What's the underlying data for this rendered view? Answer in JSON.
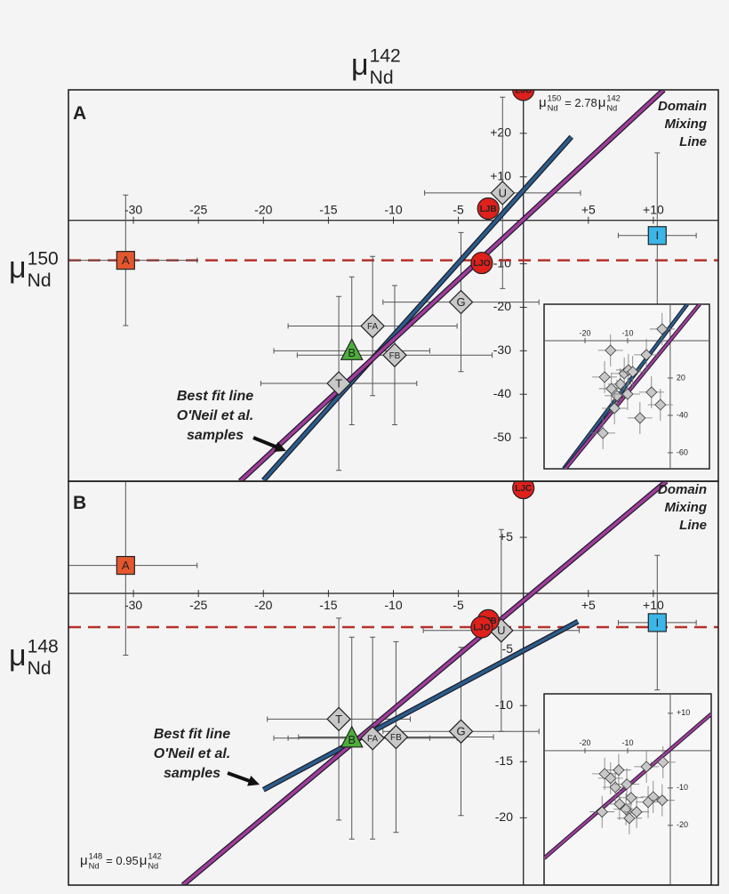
{
  "chart_data": [
    {
      "type": "scatter",
      "panel": "A",
      "x_label": {
        "symbol": "μ",
        "sup": "142",
        "sub": "Nd"
      },
      "y_label": {
        "symbol": "μ",
        "sup": "150",
        "sub": "Nd"
      },
      "xlim": [
        -35,
        15
      ],
      "ylim": [
        -60,
        30
      ],
      "xticks": [
        -30,
        -25,
        -20,
        -15,
        -10,
        -5,
        {
          "value": 5,
          "label": "+5"
        },
        {
          "value": 10,
          "label": "+10"
        }
      ],
      "yticks": [
        {
          "value": 20,
          "label": "+20"
        },
        {
          "value": 10,
          "label": "+10"
        },
        -10,
        -20,
        -30,
        -40,
        -50
      ],
      "points": {
        "labels": [
          "A",
          "LJC",
          "U",
          "LJB",
          "LJO",
          "I",
          "G",
          "FA",
          "B",
          "FB",
          "T"
        ],
        "x": [
          -30.6,
          0,
          -1.6,
          -2.7,
          -3.2,
          10.3,
          -4.8,
          -11.6,
          -13.2,
          -9.9,
          -14.2
        ],
        "y": [
          -9.2,
          30,
          6.3,
          2.7,
          -9.8,
          -3.5,
          -18.8,
          -24.3,
          -30,
          -31,
          -37.5
        ],
        "x_err": [
          5.5,
          null,
          6,
          null,
          null,
          3,
          6,
          6.5,
          6,
          7.5,
          6
        ],
        "y_err": [
          15,
          null,
          22,
          null,
          null,
          19,
          16,
          16,
          17,
          16,
          20
        ],
        "shapes": [
          "square",
          "circle",
          "diamond",
          "circle",
          "circle",
          "square",
          "diamond",
          "diamond",
          "triangle",
          "diamond",
          "diamond"
        ],
        "colors": [
          "#e4572e",
          "#e0201b",
          "#c8c8c8",
          "#e0201b",
          "#e0201b",
          "#3bb6e8",
          "#c8c8c8",
          "#c8c8c8",
          "#4caf3a",
          "#c8c8c8",
          "#c8c8c8"
        ]
      },
      "reference_line": {
        "y": -9.2,
        "color": "#b8302a"
      },
      "lines": [
        {
          "color": "#2a5d8c",
          "x": [
            -20,
            3.7
          ],
          "y": [
            -59.8,
            19.2
          ]
        },
        {
          "color": "#a33c9c",
          "x": [
            -21.8,
            10.8
          ],
          "y": [
            -60,
            30
          ]
        }
      ],
      "annotations": {
        "mixing": {
          "text": [
            "Domain",
            "Mixing",
            "Line"
          ],
          "color": "#b0399f"
        },
        "best_fit": {
          "text": [
            "Best fit line",
            "O'Neil et al.",
            "samples"
          ],
          "color": "#2c6ea5"
        }
      },
      "equation": {
        "lhs": {
          "symbol": "μ",
          "sup": "150",
          "sub": "Nd"
        },
        "coef": "= 2.78",
        "rhs": {
          "symbol": "μ",
          "sup": "142",
          "sub": "Nd"
        }
      },
      "inset": {
        "xlim": [
          -29.6,
          9.2
        ],
        "ylim": [
          -68.6,
          19.5
        ],
        "xticks": [
          -20,
          -10
        ],
        "yticks": [
          {
            "value": -20,
            "label": "20"
          },
          -40,
          -60
        ],
        "x": [
          -14,
          -15.4,
          -13.8,
          -11.7,
          -10.8,
          -9.8,
          -8.8,
          -12.5,
          -5.6,
          -4.4,
          -10,
          -13.1,
          -7.1,
          -2.3,
          -15.8,
          -1.9
        ],
        "y": [
          -5.2,
          -19.5,
          -25.7,
          -23.3,
          -17.6,
          -15.7,
          -16.7,
          -29.5,
          -7.6,
          -27.6,
          -28.6,
          -36.2,
          -41.4,
          -34.3,
          -49.5,
          6.2
        ],
        "color": "#c8c8c8",
        "lines": [
          {
            "color": "#2a5d8c",
            "x": [
              -25,
              4
            ],
            "y": [
              -68.6,
              19.5
            ]
          },
          {
            "color": "#a33c9c",
            "x": [
              -24.6,
              6.9
            ],
            "y": [
              -68.6,
              19.5
            ]
          }
        ]
      }
    },
    {
      "type": "scatter",
      "panel": "B",
      "y_label": {
        "symbol": "μ",
        "sup": "148",
        "sub": "Nd"
      },
      "xlim": [
        -35,
        15
      ],
      "ylim": [
        -26,
        10
      ],
      "xticks": [
        -30,
        -25,
        -20,
        -15,
        -10,
        -5,
        {
          "value": 5,
          "label": "+5"
        },
        {
          "value": 10,
          "label": "+10"
        }
      ],
      "yticks": [
        {
          "value": 5,
          "label": "+5"
        },
        -5,
        -10,
        -15,
        -20
      ],
      "points": {
        "labels": [
          "A",
          "LJC",
          "U",
          "LJB",
          "LJO",
          "I",
          "G",
          "FA",
          "B",
          "FB",
          "T"
        ],
        "x": [
          -30.6,
          0,
          -1.7,
          -2.7,
          -3.2,
          10.3,
          -4.8,
          -11.6,
          -13.2,
          -9.8,
          -14.2
        ],
        "y": [
          2.5,
          9.4,
          -3.3,
          -2.4,
          -3.0,
          -2.6,
          -12.3,
          -12.9,
          -12.9,
          -12.8,
          -11.2
        ],
        "x_err": [
          5.5,
          null,
          6,
          null,
          null,
          3,
          6,
          6.5,
          6,
          7.5,
          5.5
        ],
        "y_err": [
          8,
          null,
          9,
          null,
          null,
          6,
          7.5,
          9,
          9,
          8.5,
          9
        ],
        "shapes": [
          "square",
          "circle",
          "diamond",
          "circle",
          "circle",
          "square",
          "diamond",
          "diamond",
          "triangle",
          "diamond",
          "diamond"
        ],
        "colors": [
          "#e4572e",
          "#e0201b",
          "#c8c8c8",
          "#e0201b",
          "#e0201b",
          "#3bb6e8",
          "#c8c8c8",
          "#c8c8c8",
          "#4caf3a",
          "#c8c8c8",
          "#c8c8c8"
        ]
      },
      "reference_line": {
        "y": -3.0,
        "color": "#b8302a"
      },
      "lines": [
        {
          "color": "#2a5d8c",
          "x": [
            -20,
            4.2
          ],
          "y": [
            -17.5,
            -2.5
          ]
        },
        {
          "color": "#a33c9c",
          "x": [
            -26.2,
            11
          ],
          "y": [
            -26,
            10
          ]
        }
      ],
      "annotations": {
        "mixing": {
          "text": [
            "Domain",
            "Mixing",
            "Line"
          ],
          "color": "#b0399f"
        },
        "best_fit": {
          "text": [
            "Best fit line",
            "O'Neil et al.",
            "samples"
          ],
          "color": "#2c6ea5"
        }
      },
      "equation": {
        "lhs": {
          "symbol": "μ",
          "sup": "148",
          "sub": "Nd"
        },
        "coef": "= 0.95",
        "rhs": {
          "symbol": "μ",
          "sup": "142",
          "sub": "Nd"
        }
      },
      "inset": {
        "xlim": [
          -29.6,
          9.6
        ],
        "ylim": [
          -36,
          15.2
        ],
        "xticks": [
          -20,
          -10
        ],
        "yticks": [
          {
            "value": 10,
            "label": "+10"
          },
          -10,
          -20
        ],
        "x": [
          -15.4,
          -14,
          -12.1,
          -12.9,
          -10.2,
          -9.2,
          -10.4,
          -7.9,
          -9.6,
          -16,
          -5.6,
          -4,
          -1.7,
          -1.9,
          -5.2,
          -11.9
        ],
        "y": [
          -6.2,
          -7.4,
          -5.2,
          -9.8,
          -9,
          -12.6,
          -15.7,
          -16.4,
          -18.1,
          -16.4,
          -4.3,
          -12.4,
          -3.1,
          -13.3,
          -13.8,
          -14.3
        ],
        "color": "#c8c8c8",
        "lines": [
          {
            "color": "#a33c9c",
            "x": [
              -29.6,
              9.6
            ],
            "y": [
              -28.8,
              9.8
            ]
          }
        ]
      }
    }
  ]
}
